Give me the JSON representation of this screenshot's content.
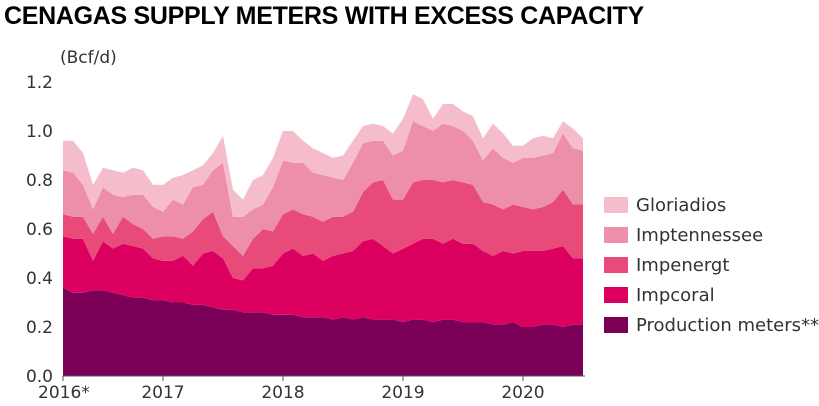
{
  "chart_data": {
    "type": "area",
    "title": "CENAGAS SUPPLY METERS WITH EXCESS CAPACITY",
    "ylabel": "(Bcf/d)",
    "xlabel": "",
    "ylim": [
      0,
      1.2
    ],
    "yticks": [
      "0.0",
      "0.2",
      "0.4",
      "0.6",
      "0.8",
      "1.0",
      "1.2"
    ],
    "xlim": [
      0,
      52
    ],
    "xticks": [
      {
        "label": "2016*",
        "x": 0
      },
      {
        "label": "2017",
        "x": 10
      },
      {
        "label": "2018",
        "x": 22
      },
      {
        "label": "2019",
        "x": 34
      },
      {
        "label": "2020",
        "x": 46
      }
    ],
    "stacked": true,
    "grid": false,
    "legend_position": "right",
    "series": [
      {
        "name": "Production meters**",
        "color": "#7a0058",
        "values": [
          0.36,
          0.34,
          0.34,
          0.35,
          0.35,
          0.34,
          0.33,
          0.32,
          0.32,
          0.31,
          0.31,
          0.3,
          0.3,
          0.29,
          0.29,
          0.28,
          0.27,
          0.27,
          0.26,
          0.26,
          0.26,
          0.25,
          0.25,
          0.25,
          0.24,
          0.24,
          0.24,
          0.23,
          0.24,
          0.23,
          0.24,
          0.23,
          0.23,
          0.23,
          0.22,
          0.23,
          0.23,
          0.22,
          0.23,
          0.23,
          0.22,
          0.22,
          0.22,
          0.21,
          0.21,
          0.22,
          0.2,
          0.2,
          0.21,
          0.21,
          0.2,
          0.21,
          0.21
        ]
      },
      {
        "name": "Impcoral",
        "color": "#dc0060",
        "values": [
          0.21,
          0.22,
          0.22,
          0.12,
          0.2,
          0.18,
          0.21,
          0.21,
          0.2,
          0.17,
          0.16,
          0.17,
          0.19,
          0.16,
          0.21,
          0.23,
          0.21,
          0.13,
          0.13,
          0.18,
          0.18,
          0.2,
          0.25,
          0.27,
          0.25,
          0.26,
          0.23,
          0.26,
          0.26,
          0.28,
          0.31,
          0.33,
          0.3,
          0.27,
          0.3,
          0.31,
          0.33,
          0.34,
          0.31,
          0.33,
          0.32,
          0.32,
          0.29,
          0.28,
          0.3,
          0.28,
          0.31,
          0.31,
          0.3,
          0.31,
          0.33,
          0.27,
          0.27
        ]
      },
      {
        "name": "Impenergt",
        "color": "#e84a7a",
        "values": [
          0.09,
          0.09,
          0.09,
          0.11,
          0.1,
          0.06,
          0.11,
          0.09,
          0.08,
          0.08,
          0.1,
          0.1,
          0.07,
          0.14,
          0.14,
          0.16,
          0.09,
          0.13,
          0.1,
          0.12,
          0.16,
          0.14,
          0.16,
          0.16,
          0.17,
          0.15,
          0.16,
          0.16,
          0.15,
          0.16,
          0.2,
          0.23,
          0.27,
          0.22,
          0.2,
          0.25,
          0.24,
          0.24,
          0.25,
          0.24,
          0.25,
          0.24,
          0.2,
          0.21,
          0.17,
          0.2,
          0.18,
          0.17,
          0.18,
          0.19,
          0.23,
          0.22,
          0.22
        ]
      },
      {
        "name": "Imptennessee",
        "color": "#ee8fa9",
        "values": [
          0.18,
          0.18,
          0.13,
          0.1,
          0.12,
          0.16,
          0.08,
          0.12,
          0.14,
          0.13,
          0.1,
          0.15,
          0.14,
          0.18,
          0.14,
          0.17,
          0.3,
          0.12,
          0.16,
          0.12,
          0.1,
          0.18,
          0.22,
          0.19,
          0.21,
          0.18,
          0.19,
          0.16,
          0.15,
          0.2,
          0.2,
          0.17,
          0.16,
          0.18,
          0.2,
          0.25,
          0.22,
          0.2,
          0.24,
          0.22,
          0.21,
          0.18,
          0.17,
          0.23,
          0.21,
          0.17,
          0.2,
          0.21,
          0.21,
          0.2,
          0.23,
          0.23,
          0.22
        ]
      },
      {
        "name": "Gloriadios",
        "color": "#f5bdcc",
        "values": [
          0.12,
          0.13,
          0.13,
          0.1,
          0.08,
          0.1,
          0.1,
          0.11,
          0.1,
          0.09,
          0.11,
          0.09,
          0.12,
          0.07,
          0.08,
          0.07,
          0.11,
          0.11,
          0.07,
          0.12,
          0.12,
          0.12,
          0.12,
          0.13,
          0.09,
          0.1,
          0.09,
          0.08,
          0.1,
          0.09,
          0.07,
          0.07,
          0.06,
          0.09,
          0.13,
          0.11,
          0.11,
          0.05,
          0.08,
          0.09,
          0.08,
          0.1,
          0.09,
          0.1,
          0.1,
          0.07,
          0.05,
          0.08,
          0.08,
          0.06,
          0.05,
          0.08,
          0.05
        ]
      }
    ]
  }
}
